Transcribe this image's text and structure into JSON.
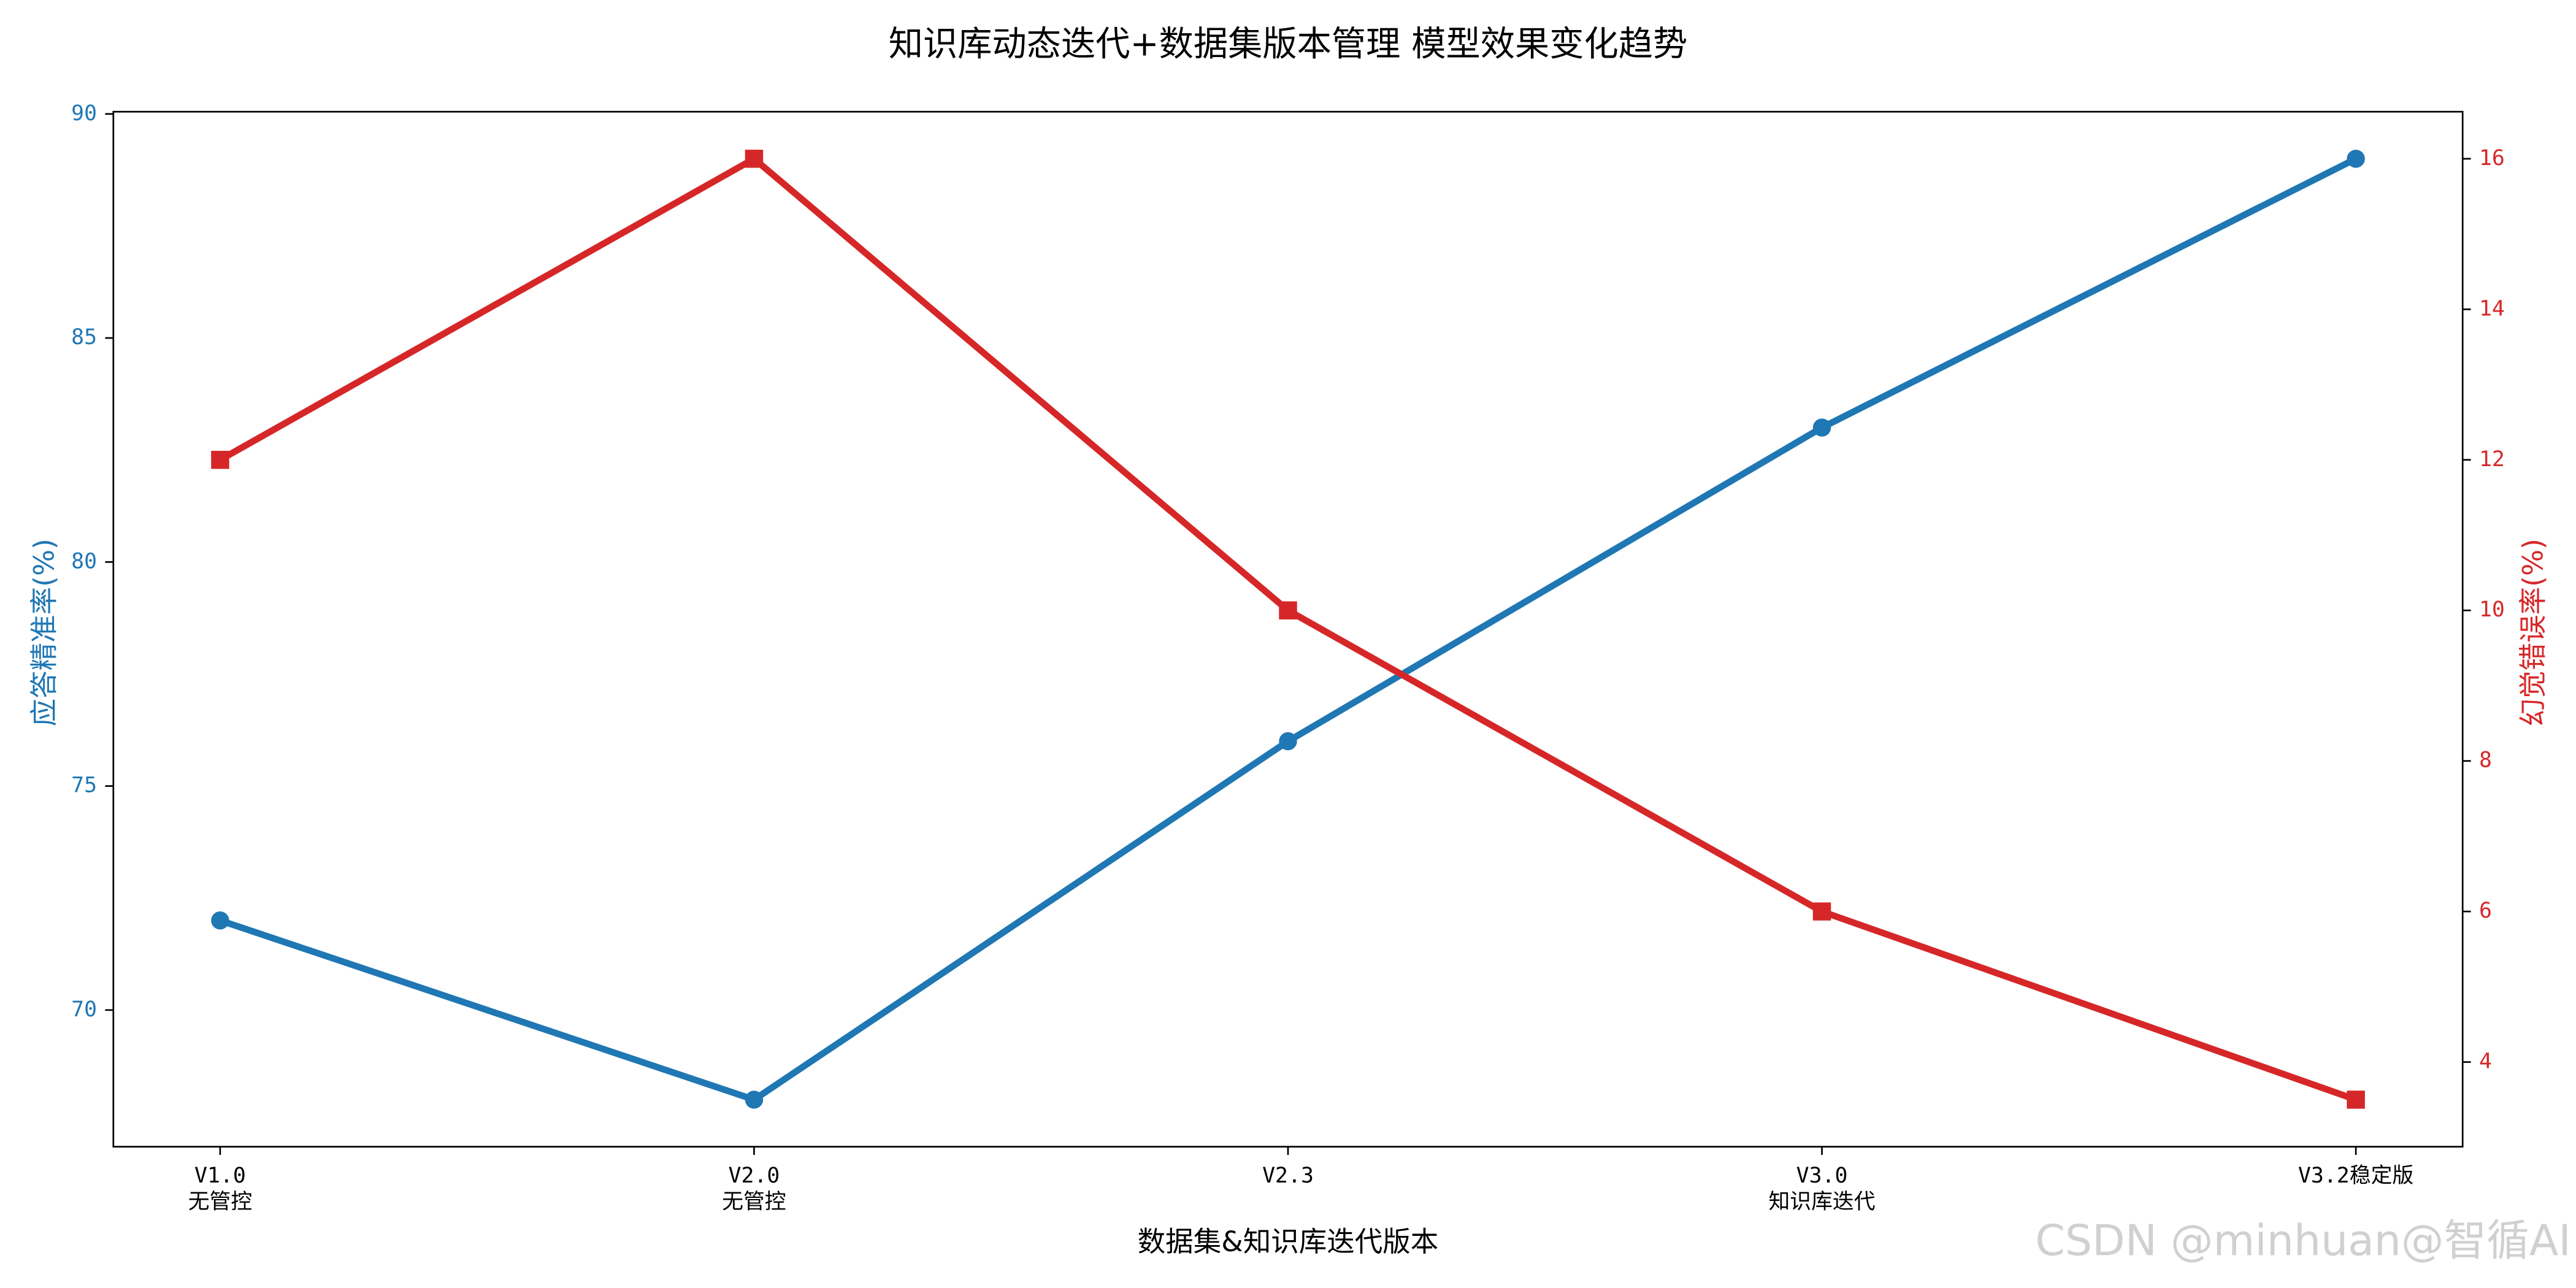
{
  "chart_data": {
    "type": "line",
    "title": "知识库动态迭代+数据集版本管理 模型效果变化趋势",
    "x_label": "数据集&知识库迭代版本",
    "y_label": "应答精准率(%)",
    "y2_label": "幻觉错误率(%)",
    "categories": [
      "V1.0\n无管控",
      "V2.0\n无管控",
      "V2.3",
      "V3.0\n知识库迭代",
      "V3.2稳定版"
    ],
    "series": [
      {
        "name": "应答精准率",
        "color": "#1f77b4",
        "marker": "circle",
        "values": [
          72,
          68,
          76,
          83,
          89
        ]
      },
      {
        "name": "幻觉错误率",
        "color": "#d62728",
        "marker": "square",
        "axis": "y2",
        "values": [
          12,
          16,
          10,
          6,
          3.5
        ]
      }
    ],
    "ylim": [
      66.95,
      90.05
    ],
    "yticks": [
      70,
      75,
      80,
      85,
      90
    ],
    "y2lim": [
      2.875,
      16.625
    ],
    "y2ticks": [
      4,
      6,
      8,
      10,
      12,
      14,
      16
    ],
    "grid": false,
    "watermark": "CSDN @minhuan@智循AI"
  }
}
